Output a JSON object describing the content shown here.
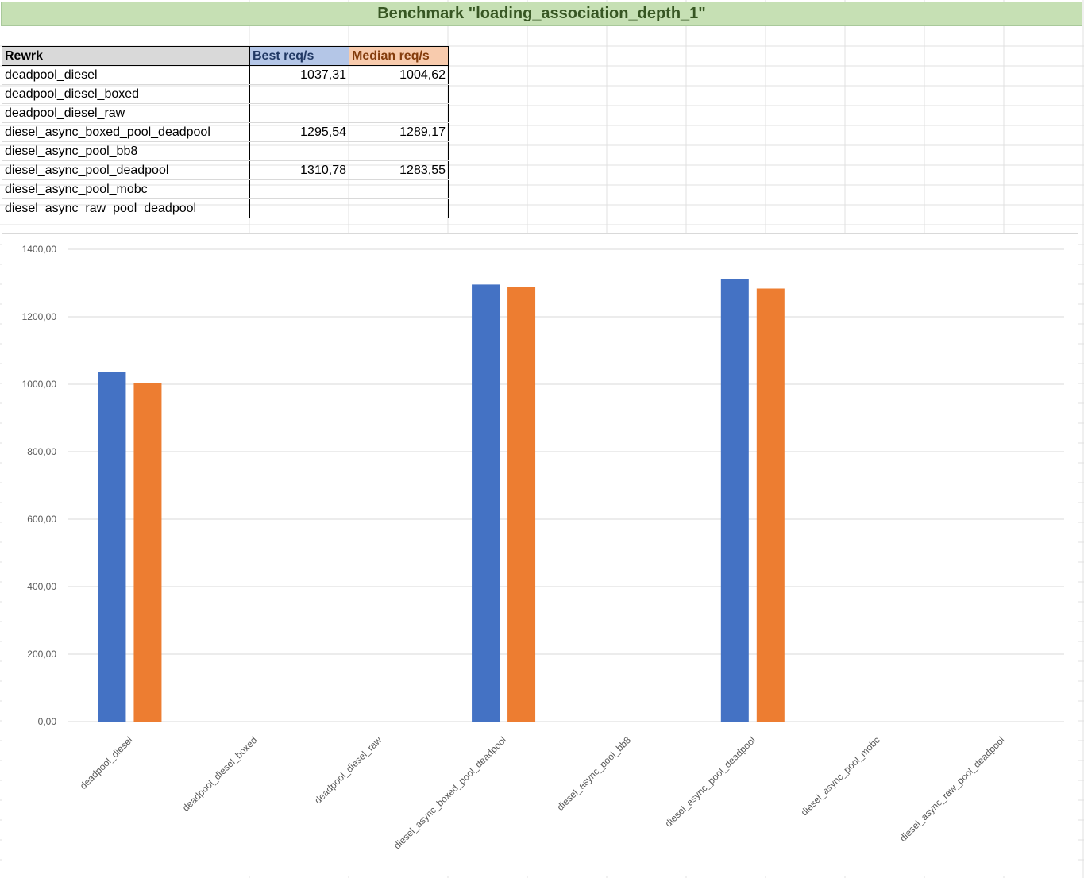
{
  "sheet": {
    "title": "Benchmark \"loading_association_depth_1\"",
    "headers": [
      "Rewrk",
      "Best req/s",
      "Median req/s"
    ],
    "rows": [
      [
        "deadpool_diesel",
        "1037,31",
        "1004,62"
      ],
      [
        "deadpool_diesel_boxed",
        "",
        ""
      ],
      [
        "deadpool_diesel_raw",
        "",
        ""
      ],
      [
        "diesel_async_boxed_pool_deadpool",
        "1295,54",
        "1289,17"
      ],
      [
        "diesel_async_pool_bb8",
        "",
        ""
      ],
      [
        "diesel_async_pool_deadpool",
        "1310,78",
        "1283,55"
      ],
      [
        "diesel_async_pool_mobc",
        "",
        ""
      ],
      [
        "diesel_async_raw_pool_deadpool",
        "",
        ""
      ]
    ]
  },
  "chart_data": {
    "type": "bar",
    "categories": [
      "deadpool_diesel",
      "deadpool_diesel_boxed",
      "deadpool_diesel_raw",
      "diesel_async_boxed_pool_deadpool",
      "diesel_async_pool_bb8",
      "diesel_async_pool_deadpool",
      "diesel_async_pool_mobc",
      "diesel_async_raw_pool_deadpool"
    ],
    "series": [
      {
        "values": [
          1037.31,
          null,
          null,
          1295.54,
          null,
          1310.78,
          null,
          null
        ],
        "color": "#4472c4"
      },
      {
        "values": [
          1004.62,
          null,
          null,
          1289.17,
          null,
          1283.55,
          null,
          null
        ],
        "color": "#ed7d31"
      }
    ],
    "ylim": [
      0,
      1400
    ],
    "yticks": [
      "0,00",
      "200,00",
      "400,00",
      "600,00",
      "800,00",
      "1000,00",
      "1200,00",
      "1400,00"
    ],
    "grid": true,
    "legend": "none"
  }
}
